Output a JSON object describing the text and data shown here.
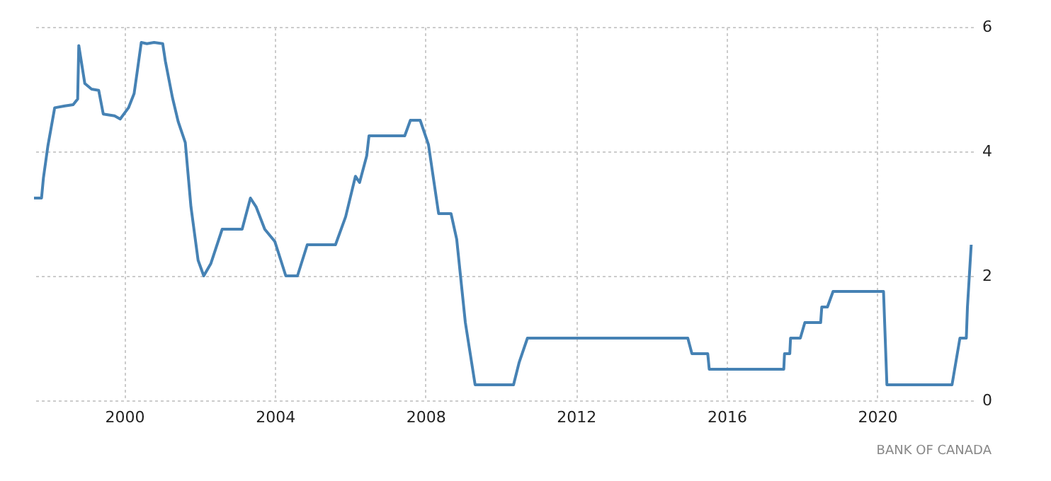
{
  "chart_data": {
    "type": "line",
    "x": [
      1997.6,
      1997.8,
      1997.85,
      1997.97,
      1998.15,
      1998.42,
      1998.64,
      1998.76,
      1998.79,
      1998.95,
      1999.13,
      1999.32,
      1999.44,
      1999.74,
      1999.89,
      2000.11,
      2000.26,
      2000.34,
      2000.45,
      2000.6,
      2000.79,
      2001.02,
      2001.09,
      2001.28,
      2001.43,
      2001.62,
      2001.77,
      2001.96,
      2002.11,
      2002.3,
      2002.6,
      2003.13,
      2003.35,
      2003.5,
      2003.73,
      2004.0,
      2004.29,
      2004.6,
      2004.86,
      2005.61,
      2005.88,
      2006.14,
      2006.25,
      2006.44,
      2006.5,
      2007.45,
      2007.6,
      2007.86,
      2008.08,
      2008.35,
      2008.68,
      2008.83,
      2009.06,
      2009.32,
      2010.34,
      2010.49,
      2010.71,
      2014.97,
      2015.08,
      2015.5,
      2015.54,
      2017.52,
      2017.54,
      2017.68,
      2017.7,
      2017.96,
      2018.08,
      2018.5,
      2018.53,
      2018.68,
      2018.83,
      2020.17,
      2020.26,
      2021.99,
      2022.2,
      2022.37,
      2022.4,
      2022.5
    ],
    "values": [
      3.25,
      3.25,
      3.57,
      4.09,
      4.7,
      4.73,
      4.75,
      4.84,
      5.7,
      5.09,
      5.0,
      4.98,
      4.6,
      4.57,
      4.52,
      4.7,
      4.93,
      5.27,
      5.75,
      5.73,
      5.75,
      5.73,
      5.45,
      4.86,
      4.48,
      4.14,
      3.11,
      2.25,
      2.0,
      2.2,
      2.75,
      2.75,
      3.25,
      3.11,
      2.75,
      2.55,
      2.0,
      2.0,
      2.5,
      2.5,
      2.95,
      3.6,
      3.5,
      3.93,
      4.25,
      4.25,
      4.5,
      4.5,
      4.11,
      3.0,
      3.0,
      2.59,
      1.25,
      0.25,
      0.25,
      0.61,
      1.0,
      1.0,
      0.75,
      0.75,
      0.5,
      0.5,
      0.75,
      0.75,
      1.0,
      1.0,
      1.25,
      1.25,
      1.5,
      1.5,
      1.75,
      1.75,
      0.25,
      0.25,
      1.0,
      1.0,
      1.5,
      2.5
    ],
    "color": "#4682b4",
    "xlim": [
      1997.6,
      2022.55
    ],
    "xticks": [
      2000,
      2004,
      2008,
      2012,
      2016,
      2020
    ],
    "ylim": [
      0,
      6
    ],
    "yticks": [
      0,
      2,
      4,
      6
    ],
    "grid": true,
    "marker": "none",
    "line_style": "solid",
    "annotations": [
      "BANK OF CANADA"
    ]
  }
}
